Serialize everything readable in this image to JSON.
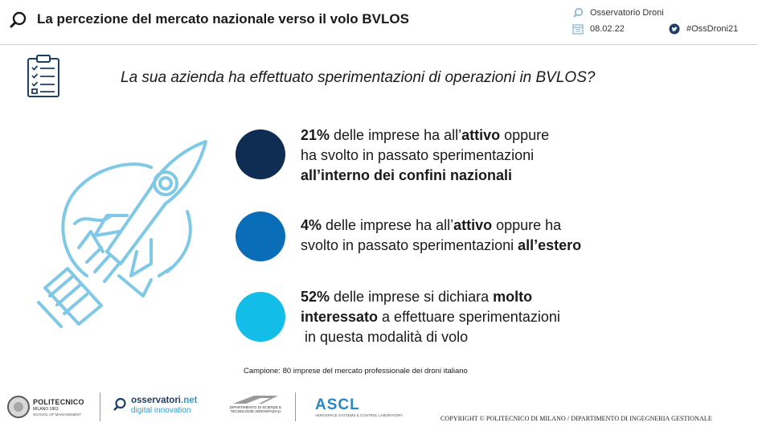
{
  "header": {
    "title": "La percezione del mercato nazionale verso il volo BVLOS",
    "observatory": "Osservatorio Droni",
    "date": "08.02.22",
    "hashtag": "#OssDroni21",
    "icons": [
      "search-icon",
      "calendar-icon",
      "twitter-icon"
    ]
  },
  "question": "La sua azienda ha effettuato sperimentazioni di operazioni in BVLOS?",
  "stats": [
    {
      "color": "#0f2d52",
      "lines": [
        [
          {
            "t": "21%",
            "b": true
          },
          {
            "t": " delle imprese ha all’",
            "b": false
          },
          {
            "t": "attivo",
            "b": true
          },
          {
            "t": " oppure",
            "b": false
          }
        ],
        [
          {
            "t": "ha svolto in passato sperimentazioni",
            "b": false
          }
        ],
        [
          {
            "t": "all’interno dei confini nazionali",
            "b": true
          }
        ]
      ]
    },
    {
      "color": "#0a6db7",
      "lines": [
        [
          {
            "t": "4%",
            "b": true
          },
          {
            "t": " delle imprese ha all’",
            "b": false
          },
          {
            "t": "attivo",
            "b": true
          },
          {
            "t": " oppure ha",
            "b": false
          }
        ],
        [
          {
            "t": "svolto in passato sperimentazioni ",
            "b": false
          },
          {
            "t": "all’estero",
            "b": true
          }
        ]
      ]
    },
    {
      "color": "#12bde8",
      "lines": [
        [
          {
            "t": "52%",
            "b": true
          },
          {
            "t": " delle imprese si dichiara ",
            "b": false
          },
          {
            "t": "molto",
            "b": true
          }
        ],
        [
          {
            "t": "interessato",
            "b": true
          },
          {
            "t": " a effettuare sperimentazioni",
            "b": false
          }
        ],
        [
          {
            "t": " in questa modalità di volo",
            "b": false
          }
        ]
      ]
    }
  ],
  "sample": "Campione: 80 imprese del mercato professionale dei droni italiano",
  "footer": {
    "polimi": {
      "name": "POLITECNICO",
      "city": "MILANO 1863",
      "school": "SCHOOL OF MANAGEMENT"
    },
    "osservatori": {
      "name": "osservatori",
      "suffix": ".net",
      "tagline": "digital innovation"
    },
    "dipartimento": "DIPARTIMENTO DI SCIENZE E TECNOLOGIE AEROSPAZIALI",
    "ascl": {
      "name": "ASCL",
      "tagline": "AEROSPACE SYSTEMS & CONTROL LABORATORY"
    },
    "copyright": "COPYRIGHT © POLITECNICO DI MILANO / DIPARTIMENTO DI INGEGNERIA GESTIONALE"
  }
}
